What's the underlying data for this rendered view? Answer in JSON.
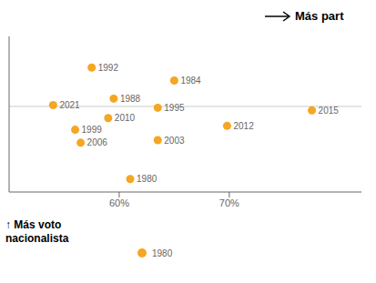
{
  "chart_data": {
    "type": "scatter",
    "x": [
      61.0,
      65.0,
      59.5,
      57.5,
      63.5,
      56.0,
      63.5,
      56.5,
      59.0,
      69.8,
      77.5,
      54.0
    ],
    "values": [
      0.35,
      0.73,
      0.66,
      0.78,
      0.625,
      0.54,
      0.5,
      0.49,
      0.585,
      0.555,
      0.615,
      0.635
    ],
    "point_labels": [
      "1980",
      "1984",
      "1988",
      "1992",
      "1995",
      "1999",
      "2003",
      "2006",
      "2010",
      "2012",
      "2015",
      "2021"
    ],
    "color": "#F5A623",
    "xlim": [
      50,
      82
    ],
    "ylim": [
      0.3,
      0.9
    ],
    "xticks": [
      {
        "value": 60,
        "label": "60%"
      },
      {
        "value": 70,
        "label": "70%"
      }
    ],
    "yticks": [],
    "tick_labels": "x",
    "grid": false,
    "hline": {
      "y": 0.63,
      "color": "#cccccc"
    },
    "annotations": [
      {
        "text": "Más part",
        "arrow": "right"
      },
      {
        "text": "↑ Más voto\nnacionalista"
      },
      {
        "text": "1980",
        "marker": "dot"
      }
    ]
  }
}
